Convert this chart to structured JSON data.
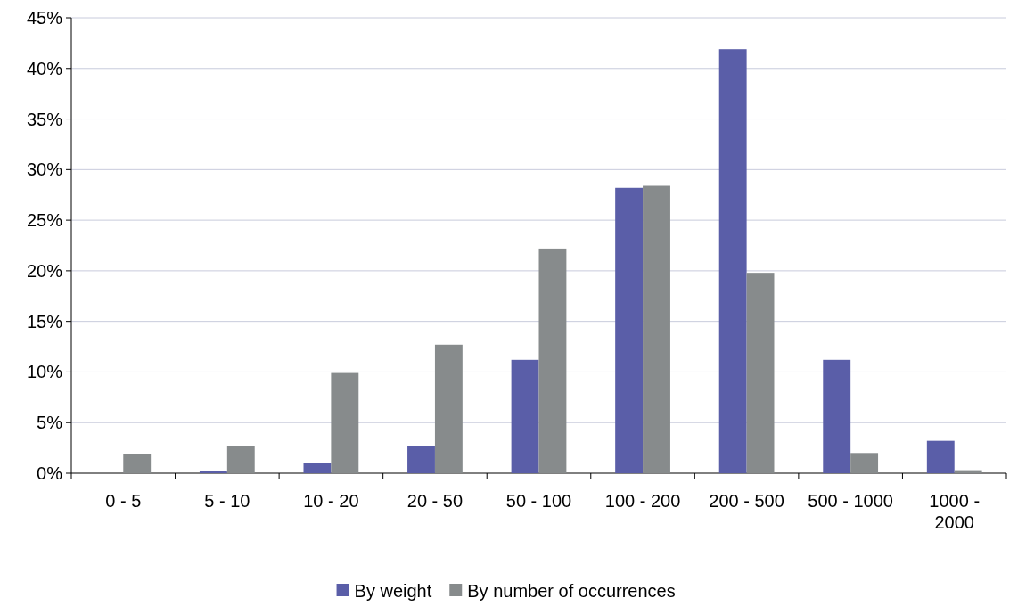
{
  "chart_data": {
    "type": "bar",
    "categories": [
      "0 - 5",
      "5 - 10",
      "10 - 20",
      "20 - 50",
      "50 - 100",
      "100 - 200",
      "200 - 500",
      "500 - 1000",
      "1000 - 2000"
    ],
    "series": [
      {
        "name": "By weight",
        "color": "#5a5ea8",
        "values": [
          0,
          0.2,
          1.0,
          2.7,
          11.2,
          28.2,
          41.9,
          11.2,
          3.2
        ]
      },
      {
        "name": "By number of occurrences",
        "color": "#878b8c",
        "values": [
          1.9,
          2.7,
          9.9,
          12.7,
          22.2,
          28.4,
          19.8,
          2.0,
          0.3
        ]
      }
    ],
    "ylim": [
      0,
      45
    ],
    "yticks": [
      {
        "value": 0,
        "label": "0%"
      },
      {
        "value": 5,
        "label": "5%"
      },
      {
        "value": 10,
        "label": "10%"
      },
      {
        "value": 15,
        "label": "15%"
      },
      {
        "value": 20,
        "label": "20%"
      },
      {
        "value": 25,
        "label": "25%"
      },
      {
        "value": 30,
        "label": "30%"
      },
      {
        "value": 35,
        "label": "35%"
      },
      {
        "value": 40,
        "label": "40%"
      },
      {
        "value": 45,
        "label": "45%"
      }
    ],
    "grid": "y",
    "legend": "bottom"
  }
}
